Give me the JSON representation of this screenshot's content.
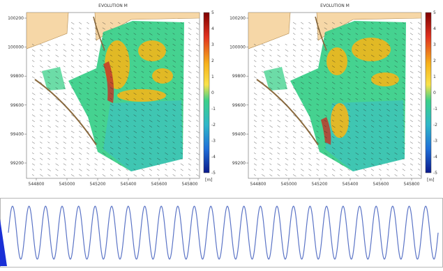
{
  "chart_data": [
    {
      "type": "heatmap",
      "title": "EVOLUTION     M",
      "x_tick_labels": [
        "544800",
        "545000",
        "545200",
        "545400",
        "545600",
        "545800"
      ],
      "y_tick_labels": [
        "100200",
        "100000",
        "99800",
        "99600",
        "99400",
        "99200"
      ],
      "colorbar_ticks": [
        "5",
        "4",
        "3",
        "2",
        "1",
        "0",
        "-1",
        "-2",
        "-3",
        "-4",
        "-5"
      ],
      "colorbar_unit": "[m]",
      "colors": {
        "land": "#f6d7a7",
        "erosion": "#1f9ad8",
        "neutral": "#3bd08a",
        "deposition": "#f2b61a",
        "strong": "#c0392b"
      }
    },
    {
      "type": "heatmap",
      "title": "EVOLUTION     M",
      "x_tick_labels": [
        "544800",
        "545000",
        "545200",
        "545400",
        "545600",
        "545800"
      ],
      "y_tick_labels": [
        "100200",
        "100000",
        "99800",
        "99600",
        "99400",
        "99200"
      ],
      "colorbar_ticks": [
        "5",
        "4",
        "3",
        "2",
        "1",
        "0",
        "-1",
        "-2",
        "-3",
        "-4",
        "-5"
      ],
      "colorbar_unit": "[m]",
      "colors": {
        "land": "#f6d7a7",
        "erosion": "#1f9ad8",
        "neutral": "#3bd08a",
        "deposition": "#f2b61a",
        "strong": "#c0392b"
      }
    },
    {
      "type": "line",
      "series_color": "#5b74c6",
      "cycles": 26
    }
  ]
}
